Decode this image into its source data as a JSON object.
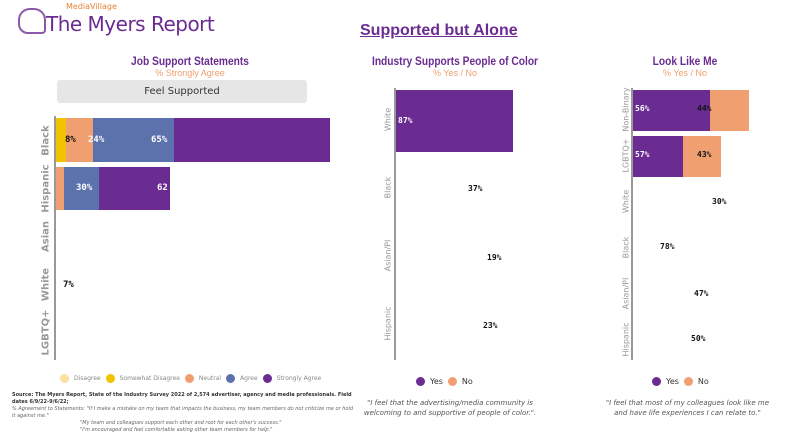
{
  "brand": {
    "sub": "MediaVillage",
    "title": "The Myers Report"
  },
  "title": "Supported but Alone",
  "colors": {
    "disagree": "#fbe0a0",
    "somewhat_disagree": "#f2c300",
    "neutral": "#f0a070",
    "agree": "#5b72ad",
    "strongly_agree": "#6a2c91",
    "yes": "#6a2c91",
    "no": "#f0a070"
  },
  "chart_data": [
    {
      "type": "bar",
      "stacked": true,
      "title": "Job Support Statements",
      "subtitle": "% Strongly Agree",
      "filter": "Feel Supported",
      "categories": [
        "Black",
        "Hispanic",
        "Asian",
        "White",
        "LGBTQ+"
      ],
      "legend": [
        "Disagree",
        "Somewhat Disagree",
        "Neutral",
        "Agree",
        "Strongly Agree"
      ],
      "labels": {
        "Black": [
          "8%",
          "24%",
          "65%"
        ],
        "Hispanic": [
          "30%",
          "62"
        ],
        "White": [
          "7%"
        ]
      },
      "series": [
        {
          "name": "Neutral",
          "values": [
            8,
            3,
            null,
            null,
            null
          ]
        },
        {
          "name": "Agree",
          "values": [
            24,
            30,
            null,
            null,
            null
          ]
        },
        {
          "name": "Strongly Agree",
          "values": [
            65,
            62,
            null,
            7,
            null
          ]
        }
      ]
    },
    {
      "type": "bar",
      "title": "Industry Supports People of Color",
      "subtitle": "% Yes / No",
      "categories": [
        "White",
        "Black",
        "Asian/PI",
        "Hispanic"
      ],
      "labels": [
        "87%",
        "37%",
        "19%",
        "23%"
      ],
      "series": [
        {
          "name": "Yes",
          "values": [
            87,
            37,
            19,
            23
          ]
        }
      ],
      "legend": [
        "Yes",
        "No"
      ],
      "quote": "\"I feel that the advertising/media community is welcoming to and supportive of people of color.\"."
    },
    {
      "type": "bar",
      "stacked": true,
      "title": "Look Like Me",
      "subtitle": "% Yes / No",
      "categories": [
        "Non-Binary",
        "LGBTQ+",
        "White",
        "Black",
        "Asian/PI",
        "Hispanic"
      ],
      "labels": {
        "Non-Binary": [
          "56%",
          "44%"
        ],
        "LGBTQ+": [
          "57%",
          "43%"
        ],
        "White": [
          "30%"
        ],
        "Black": [
          "78%"
        ],
        "Asian/PI": [
          "47%"
        ],
        "Hispanic": [
          "50%"
        ]
      },
      "series": [
        {
          "name": "Yes",
          "values": [
            56,
            57,
            30,
            78,
            47,
            50
          ]
        },
        {
          "name": "No",
          "values": [
            44,
            43,
            null,
            null,
            null,
            null
          ]
        }
      ],
      "legend": [
        "Yes",
        "No"
      ],
      "quote": "\"I feel that most of my colleagues look like me and have life experiences I can relate to.\""
    }
  ],
  "source": {
    "line1": "Source:  The Myers Report, State of the Industry Survey 2022 of 2,574 advertiser, agency and media professionals.  Field dates 6/9/22-9/6/22;",
    "line2": "% Agreement to Statements: \"If I make a mistake on my team that impacts the business, my team members do not criticize me or hold it against me.\"",
    "line3": "\"My team and colleagues support each other and root for each other's success.\"",
    "line4": "\"I'm encouraged and feel comfortable asking other team members for help.\""
  }
}
